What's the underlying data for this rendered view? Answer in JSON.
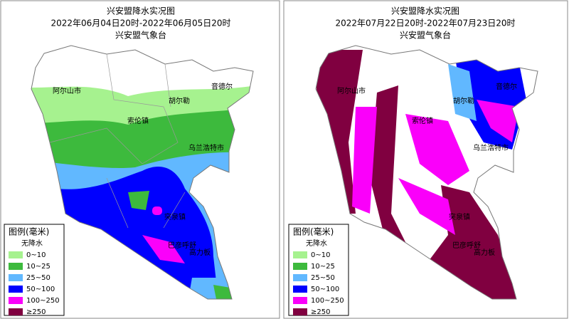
{
  "maps": [
    {
      "title": "兴安盟降水实况图",
      "period": "2022年06月04日20时-2022年06月05日20时",
      "agency": "兴安盟气象台",
      "places": [
        "阿尔山市",
        "索伦镇",
        "胡尔勒",
        "音德尔",
        "乌兰浩特市",
        "突泉镇",
        "巴彦呼舒",
        "高力板"
      ],
      "legend": {
        "title": "图例(毫米)",
        "items": [
          {
            "label": "无降水",
            "color": "#ffffff"
          },
          {
            "label": "0~10",
            "color": "#a6f28f"
          },
          {
            "label": "10~25",
            "color": "#3dba3d"
          },
          {
            "label": "25~50",
            "color": "#61b8ff"
          },
          {
            "label": "50~100",
            "color": "#0000fe"
          },
          {
            "label": "100~250",
            "color": "#fa00fa"
          },
          {
            "label": "≥250",
            "color": "#800040"
          }
        ]
      }
    },
    {
      "title": "兴安盟降水实况图",
      "period": "2022年07月22日20时-2022年07月23日20时",
      "agency": "兴安盟气象台",
      "places": [
        "阿尔山市",
        "索伦镇",
        "胡尔勒",
        "音德尔",
        "乌兰浩特市",
        "突泉镇",
        "巴彦呼舒",
        "高力板"
      ],
      "legend": {
        "title": "图例(毫米)",
        "items": [
          {
            "label": "无降水",
            "color": "#ffffff"
          },
          {
            "label": "0~10",
            "color": "#a6f28f"
          },
          {
            "label": "10~25",
            "color": "#3dba3d"
          },
          {
            "label": "25~50",
            "color": "#61b8ff"
          },
          {
            "label": "50~100",
            "color": "#0000fe"
          },
          {
            "label": "100~250",
            "color": "#fa00fa"
          },
          {
            "label": "≥250",
            "color": "#800040"
          }
        ]
      }
    }
  ]
}
